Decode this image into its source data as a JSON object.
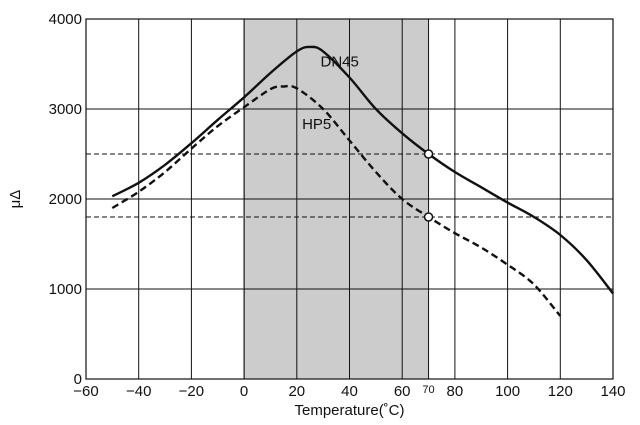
{
  "chart_data": {
    "type": "line",
    "xlabel": "Temperature(˚C)",
    "ylabel": "μΔ",
    "xlim": [
      -60,
      140
    ],
    "ylim": [
      0,
      4000
    ],
    "x_ticks": [
      -60,
      -40,
      -20,
      0,
      20,
      40,
      60,
      80,
      100,
      120,
      140
    ],
    "x_tick_labels": [
      "−60",
      "−40",
      "−20",
      "0",
      "20",
      "40",
      "60",
      "80",
      "100",
      "120",
      "140"
    ],
    "y_ticks": [
      0,
      1000,
      2000,
      3000,
      4000
    ],
    "y_tick_labels": [
      "0",
      "1000",
      "2000",
      "3000",
      "4000"
    ],
    "extra_x_tick": {
      "value": 70,
      "label": "70"
    },
    "grid": true,
    "shaded_region": {
      "x": [
        0,
        70
      ],
      "color": "#cccccc"
    },
    "reference_lines": [
      {
        "y": 2500,
        "style": "dashed"
      },
      {
        "y": 1800,
        "style": "dashed"
      }
    ],
    "markers": [
      {
        "series": "DN45",
        "x": 70,
        "y": 2500
      },
      {
        "series": "HP5",
        "x": 70,
        "y": 1800
      }
    ],
    "series": [
      {
        "name": "DN45",
        "style": "solid",
        "x": [
          -50,
          -40,
          -30,
          -20,
          -10,
          0,
          10,
          20,
          25,
          30,
          40,
          50,
          60,
          70,
          80,
          90,
          100,
          110,
          120,
          130,
          140
        ],
        "y": [
          2030,
          2180,
          2380,
          2620,
          2880,
          3130,
          3400,
          3640,
          3690,
          3640,
          3350,
          3000,
          2730,
          2500,
          2300,
          2130,
          1960,
          1800,
          1600,
          1320,
          950
        ]
      },
      {
        "name": "HP5",
        "style": "dashed",
        "x": [
          -50,
          -40,
          -30,
          -20,
          -10,
          0,
          10,
          15,
          20,
          30,
          40,
          50,
          60,
          70,
          80,
          90,
          100,
          110,
          120
        ],
        "y": [
          1900,
          2080,
          2300,
          2560,
          2810,
          3020,
          3220,
          3250,
          3230,
          3000,
          2650,
          2300,
          2000,
          1800,
          1620,
          1460,
          1270,
          1050,
          700
        ]
      }
    ]
  }
}
